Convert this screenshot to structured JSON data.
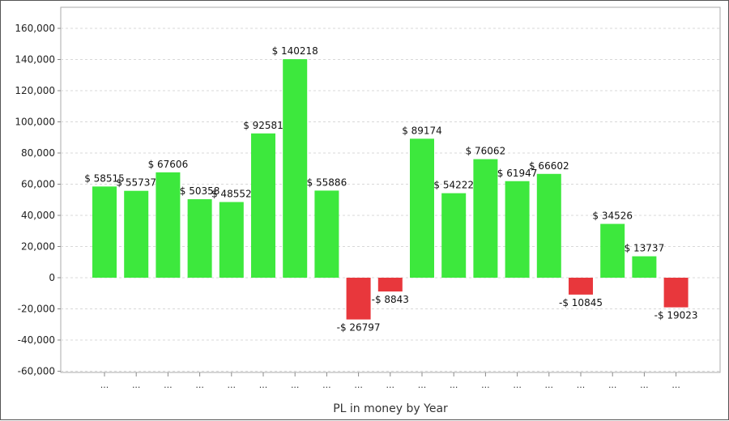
{
  "chart_data": {
    "type": "bar",
    "title": "",
    "xlabel": "PL in money by Year",
    "ylabel": "",
    "ylim": [
      -60000,
      165000
    ],
    "yticks": [
      -60000,
      -40000,
      -20000,
      0,
      20000,
      40000,
      60000,
      80000,
      100000,
      120000,
      140000,
      160000
    ],
    "ytick_labels": [
      "-60,000",
      "-40,000",
      "-20,000",
      "0",
      "20,000",
      "40,000",
      "60,000",
      "80,000",
      "100,000",
      "120,000",
      "140,000",
      "160,000"
    ],
    "grid": true,
    "legend": "none",
    "categories": [
      "...",
      "...",
      "...",
      "...",
      "...",
      "...",
      "...",
      "...",
      "...",
      "...",
      "...",
      "...",
      "...",
      "...",
      "...",
      "...",
      "...",
      "...",
      "..."
    ],
    "values": [
      58515,
      55737,
      67606,
      50358,
      48552,
      92581,
      140218,
      55886,
      -26797,
      -8843,
      89174,
      54222,
      76062,
      61947,
      66602,
      -10845,
      34526,
      13737,
      -19023
    ],
    "data_labels": [
      "$ 58515",
      "$ 55737",
      "$ 67606",
      "$ 50358",
      "$ 48552",
      "$ 92581",
      "$ 140218",
      "$ 55886",
      "-$ 26797",
      "-$ 8843",
      "$ 89174",
      "$ 54222",
      "$ 76062",
      "$ 61947",
      "$ 66602",
      "-$ 10845",
      "$ 34526",
      "$ 13737",
      "-$ 19023"
    ],
    "colors": {
      "positive": "#3de83d",
      "negative": "#e8373c",
      "grid": "#d8d8d8",
      "axis": "#888888"
    }
  }
}
